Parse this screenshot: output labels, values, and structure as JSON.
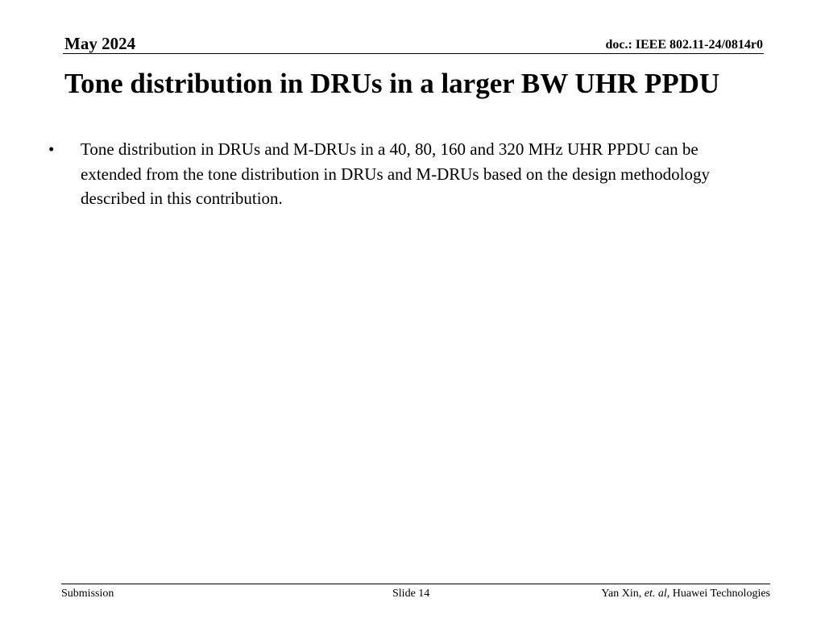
{
  "header": {
    "date": "May 2024",
    "doc_id": "doc.: IEEE 802.11-24/0814r0"
  },
  "slide": {
    "title": "Tone distribution in DRUs in a larger BW UHR PPDU",
    "bullets": [
      {
        "marker": "•",
        "text": "Tone distribution in DRUs and M-DRUs in a 40, 80, 160 and 320 MHz UHR PPDU can be extended from the tone distribution in DRUs and M-DRUs based on the design methodology described in this contribution."
      }
    ]
  },
  "footer": {
    "left": "Submission",
    "center": "Slide 14",
    "author_name": "Yan Xin, ",
    "author_etal": "et. al",
    "author_org": ", Huawei Technologies"
  }
}
